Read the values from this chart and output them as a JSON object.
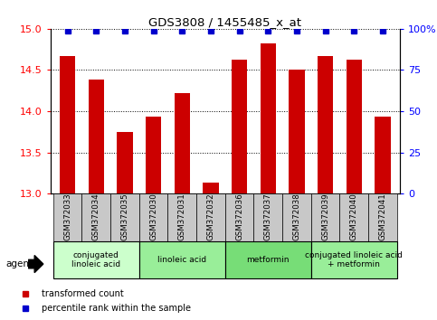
{
  "title": "GDS3808 / 1455485_x_at",
  "categories": [
    "GSM372033",
    "GSM372034",
    "GSM372035",
    "GSM372030",
    "GSM372031",
    "GSM372032",
    "GSM372036",
    "GSM372037",
    "GSM372038",
    "GSM372039",
    "GSM372040",
    "GSM372041"
  ],
  "bar_values": [
    14.67,
    14.38,
    13.75,
    13.93,
    14.22,
    13.13,
    14.63,
    14.82,
    14.51,
    14.67,
    14.63,
    13.93
  ],
  "percentile_values": [
    99,
    99,
    99,
    99,
    99,
    99,
    99,
    99,
    99,
    99,
    99,
    99
  ],
  "bar_color": "#cc0000",
  "percentile_color": "#0000cc",
  "ylim_left": [
    13,
    15
  ],
  "ylim_right": [
    0,
    100
  ],
  "yticks_left": [
    13,
    13.5,
    14,
    14.5,
    15
  ],
  "yticks_right": [
    0,
    25,
    50,
    75,
    100
  ],
  "ytick_labels_right": [
    "0",
    "25",
    "50",
    "75",
    "100%"
  ],
  "agent_groups": [
    {
      "label": "conjugated\nlinoleic acid",
      "start": 0,
      "end": 3,
      "color": "#ccffcc"
    },
    {
      "label": "linoleic acid",
      "start": 3,
      "end": 6,
      "color": "#99ee99"
    },
    {
      "label": "metformin",
      "start": 6,
      "end": 9,
      "color": "#77dd77"
    },
    {
      "label": "conjugated linoleic acid\n+ metformin",
      "start": 9,
      "end": 12,
      "color": "#99ee99"
    }
  ],
  "legend_items": [
    {
      "label": "transformed count",
      "color": "#cc0000"
    },
    {
      "label": "percentile rank within the sample",
      "color": "#0000cc"
    }
  ],
  "agent_label": "agent",
  "tick_label_bg": "#c8c8c8",
  "bar_width": 0.55,
  "main_axes": [
    0.115,
    0.395,
    0.8,
    0.515
  ],
  "label_axes": [
    0.115,
    0.245,
    0.8,
    0.15
  ],
  "agent_axes": [
    0.115,
    0.13,
    0.8,
    0.115
  ],
  "legend_axes": [
    0.05,
    0.01,
    0.9,
    0.1
  ]
}
